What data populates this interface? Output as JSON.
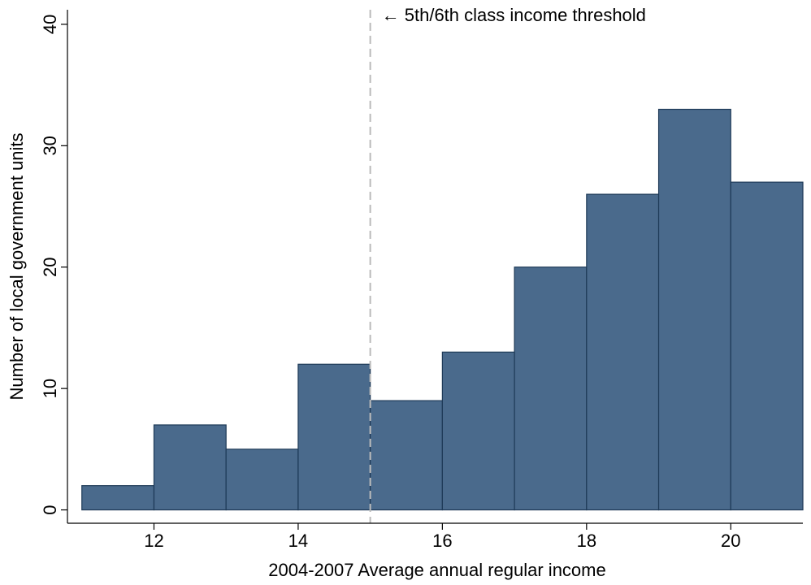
{
  "chart_data": {
    "type": "histogram",
    "x_label": "2004-2007 Average annual regular income",
    "y_label": "Number of local government units",
    "bins": [
      11,
      12,
      13,
      14,
      15,
      16,
      17,
      18,
      19,
      20,
      21
    ],
    "values": [
      2,
      7,
      5,
      12,
      9,
      13,
      20,
      26,
      33,
      27
    ],
    "color": "#4a6a8c",
    "xlim": [
      10.8,
      21
    ],
    "xticks": [
      12,
      14,
      16,
      18,
      20
    ],
    "ylim": [
      -1.1,
      41.2
    ],
    "yticks": [
      0,
      10,
      20,
      30,
      40
    ],
    "threshold": 15,
    "annotation": "← 5th/6th class income threshold"
  }
}
